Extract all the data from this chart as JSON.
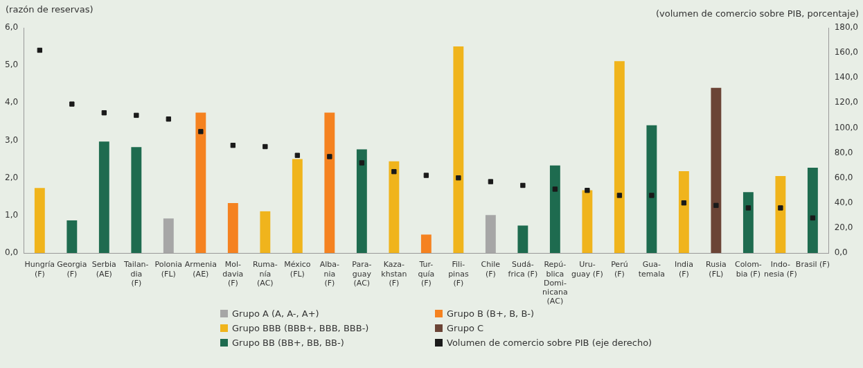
{
  "chart_data": {
    "type": "bar",
    "ylabel": "(razón de reservas)",
    "y2label": "(volumen de comercio sobre PIB, porcentaje)",
    "categories": [
      "Hungría\n(F)",
      "Georgia\n(F)",
      "Serbia\n(AE)",
      "Tailan-\ndia\n(F)",
      "Polonia\n(FL)",
      "Armenia\n(AE)",
      "Mol-\ndavia\n(F)",
      "Ruma-\nnía\n(AC)",
      "México\n(FL)",
      "Alba-\nnia\n(F)",
      "Para-\nguay\n(AC)",
      "Kaza-\nkhstan\n(F)",
      "Tur-\nquía\n(F)",
      "Fili-\npinas\n(F)",
      "Chile\n(F)",
      "Sudá-\nfrica (F)",
      "Repú-\nblica\nDomi-\nnicana\n(AC)",
      "Uru-\nguay (F)",
      "Perú\n(F)",
      "Gua-\ntemala",
      "India\n(F)",
      "Rusia\n(FL)",
      "Colom-\nbia (F)",
      "Indo-\nnesia (F)",
      "Brasil (F)"
    ],
    "series": [
      {
        "name": "Grupo A (A, A-, A+)",
        "color": "#a6a6a6",
        "values": [
          null,
          null,
          null,
          null,
          0.92,
          null,
          null,
          null,
          null,
          null,
          null,
          null,
          null,
          null,
          1.01,
          null,
          null,
          null,
          null,
          null,
          null,
          null,
          null,
          null,
          null
        ]
      },
      {
        "name": "Grupo B (B+, B, B-)",
        "color": "#f58220",
        "values": [
          null,
          null,
          null,
          null,
          null,
          3.74,
          1.33,
          null,
          null,
          3.74,
          null,
          null,
          0.49,
          null,
          null,
          null,
          null,
          null,
          null,
          null,
          null,
          null,
          null,
          null,
          null
        ]
      },
      {
        "name": "Grupo BBB (BBB+, BBB, BBB-)",
        "color": "#f0b41c",
        "values": [
          1.73,
          null,
          null,
          null,
          null,
          null,
          null,
          1.11,
          2.5,
          null,
          null,
          2.44,
          null,
          5.5,
          null,
          null,
          null,
          1.67,
          5.11,
          null,
          2.18,
          null,
          null,
          2.05,
          null
        ]
      },
      {
        "name": "Grupo C",
        "color": "#6b4436",
        "values": [
          null,
          null,
          null,
          null,
          null,
          null,
          null,
          null,
          null,
          null,
          null,
          null,
          null,
          null,
          null,
          null,
          null,
          null,
          null,
          null,
          null,
          4.4,
          null,
          null,
          null
        ]
      },
      {
        "name": "Grupo BB (BB+, BB, BB-)",
        "color": "#1e6b4f",
        "values": [
          null,
          0.87,
          2.97,
          2.82,
          null,
          null,
          null,
          null,
          null,
          null,
          2.76,
          null,
          null,
          null,
          null,
          0.73,
          2.33,
          null,
          null,
          3.4,
          null,
          null,
          1.62,
          null,
          2.27
        ]
      },
      {
        "name": "Volumen de comercio sobre PIB (eje derecho)",
        "color": "#1a1a1a",
        "type": "scatter",
        "axis": "y2",
        "marker": "square",
        "values": [
          162,
          119,
          112,
          110,
          107,
          97,
          86,
          85,
          78,
          77,
          72,
          65,
          62,
          60,
          57,
          54,
          51,
          50,
          46,
          46,
          40,
          38,
          36,
          36,
          28
        ]
      }
    ],
    "ylim": [
      0,
      6
    ],
    "yticks": [
      {
        "value": 0,
        "label": "0,0"
      },
      {
        "value": 1,
        "label": "1,0"
      },
      {
        "value": 2,
        "label": "2,0"
      },
      {
        "value": 3,
        "label": "3,0"
      },
      {
        "value": 4,
        "label": "4,0"
      },
      {
        "value": 5,
        "label": "5,0"
      },
      {
        "value": 6,
        "label": "6,0"
      }
    ],
    "y2lim": [
      0,
      180
    ],
    "y2ticks": [
      {
        "value": 0,
        "label": "0,0"
      },
      {
        "value": 20,
        "label": "20,0"
      },
      {
        "value": 40,
        "label": "40,0"
      },
      {
        "value": 60,
        "label": "60,0"
      },
      {
        "value": 80,
        "label": "80,0"
      },
      {
        "value": 100,
        "label": "100,0"
      },
      {
        "value": 120,
        "label": "120,0"
      },
      {
        "value": 140,
        "label": "140,0"
      },
      {
        "value": 160,
        "label": "160,0"
      },
      {
        "value": 180,
        "label": "180,0"
      }
    ],
    "grid": false,
    "legend": "bottom"
  }
}
